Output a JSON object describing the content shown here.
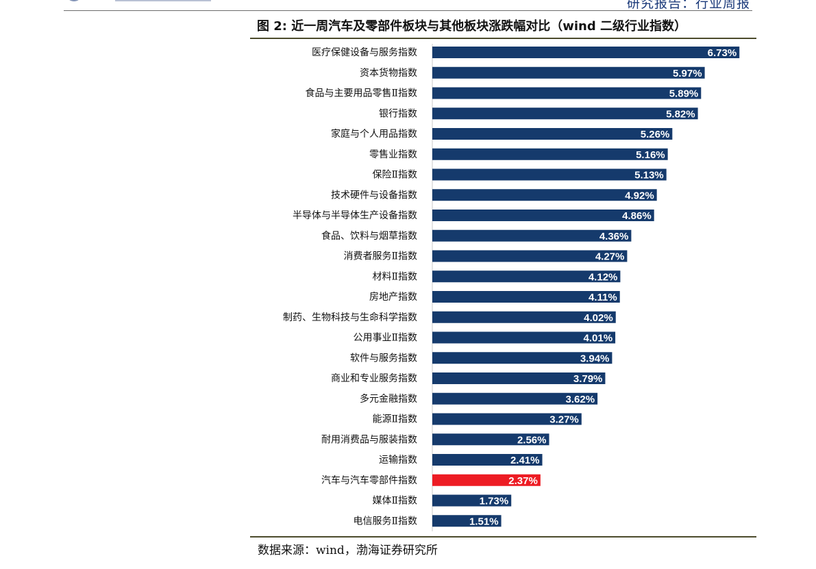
{
  "header": {
    "report_label": "研究报告：行业周报"
  },
  "figure": {
    "title": "图  2:  近一周汽车及零部件板块与其他板块涨跌幅对比（wind 二级行业指数）",
    "source": "数据来源：wind，渤海证券研究所"
  },
  "colors": {
    "bar": "#153a6c",
    "highlight": "#ed1c24",
    "label": "#ffffff"
  },
  "chart_data": {
    "type": "bar",
    "orientation": "horizontal",
    "title": "图  2:  近一周汽车及零部件板块与其他板块涨跌幅对比（wind 二级行业指数）",
    "xlabel": "",
    "ylabel": "",
    "grid": false,
    "legend": "none",
    "highlight_category": "汽车与汽车零部件指数",
    "categories": [
      "医疗保健设备与服务指数",
      "资本货物指数",
      "食品与主要用品零售Ⅱ指数",
      "银行指数",
      "家庭与个人用品指数",
      "零售业指数",
      "保险Ⅱ指数",
      "技术硬件与设备指数",
      "半导体与半导体生产设备指数",
      "食品、饮料与烟草指数",
      "消费者服务Ⅱ指数",
      "材料Ⅱ指数",
      "房地产指数",
      "制药、生物科技与生命科学指数",
      "公用事业Ⅱ指数",
      "软件与服务指数",
      "商业和专业服务指数",
      "多元金融指数",
      "能源Ⅱ指数",
      "耐用消费品与服装指数",
      "运输指数",
      "汽车与汽车零部件指数",
      "媒体Ⅱ指数",
      "电信服务Ⅱ指数"
    ],
    "values": [
      6.73,
      5.97,
      5.89,
      5.82,
      5.26,
      5.16,
      5.13,
      4.92,
      4.86,
      4.36,
      4.27,
      4.12,
      4.11,
      4.02,
      4.01,
      3.94,
      3.79,
      3.62,
      3.27,
      2.56,
      2.41,
      2.37,
      1.73,
      1.51
    ],
    "value_labels": [
      "6.73%",
      "5.97%",
      "5.89%",
      "5.82%",
      "5.26%",
      "5.16%",
      "5.13%",
      "4.92%",
      "4.86%",
      "4.36%",
      "4.27%",
      "4.12%",
      "4.11%",
      "4.02%",
      "4.01%",
      "3.94%",
      "3.79%",
      "3.62%",
      "3.27%",
      "2.56%",
      "2.41%",
      "2.37%",
      "1.73%",
      "1.51%"
    ],
    "xlim": [
      0,
      7
    ]
  }
}
